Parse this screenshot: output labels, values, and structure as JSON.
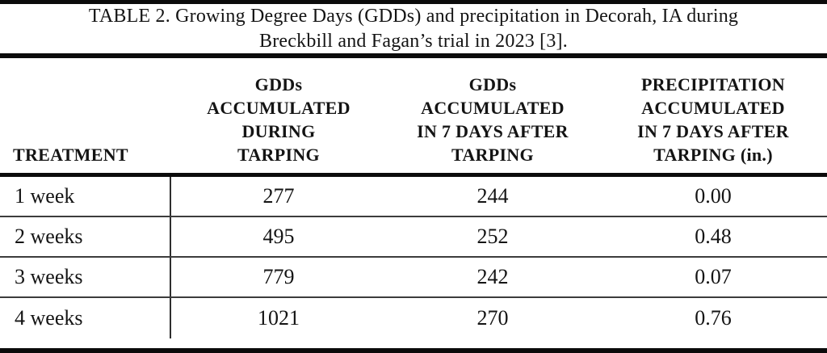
{
  "table": {
    "caption": "TABLE 2. Growing Degree Days (GDDs) and precipitation in Decorah, IA during\nBreckbill and Fagan’s trial in 2023 [3].",
    "headers": [
      "TREATMENT",
      "GDDs\nACCUMULATED\nDURING\nTARPING",
      "GDDs\nACCUMULATED\nIN 7 DAYS AFTER\nTARPING",
      "PRECIPITATION\nACCUMULATED\nIN 7 DAYS AFTER\nTARPING (in.)"
    ],
    "rows": [
      [
        "1 week",
        "277",
        "244",
        "0.00"
      ],
      [
        "2 weeks",
        "495",
        "252",
        "0.48"
      ],
      [
        "3 weeks",
        "779",
        "242",
        "0.07"
      ],
      [
        "4 weeks",
        "1021",
        "270",
        "0.76"
      ]
    ]
  },
  "colors": {
    "background": "#ffffff",
    "text": "#141414",
    "thick_rule": "#0b0b0b",
    "thin_rule": "#3c3c3c"
  },
  "chart_data": {
    "type": "table",
    "title": "TABLE 2. Growing Degree Days (GDDs) and precipitation in Decorah, IA during Breckbill and Fagan’s trial in 2023 [3].",
    "columns": [
      "TREATMENT",
      "GDDs ACCUMULATED DURING TARPING",
      "GDDs ACCUMULATED IN 7 DAYS AFTER TARPING",
      "PRECIPITATION ACCUMULATED IN 7 DAYS AFTER TARPING (in.)"
    ],
    "rows": [
      {
        "treatment": "1 week",
        "gdds_during_tarping": 277,
        "gdds_7_days_after": 244,
        "precip_7_days_after_in": 0.0
      },
      {
        "treatment": "2 weeks",
        "gdds_during_tarping": 495,
        "gdds_7_days_after": 252,
        "precip_7_days_after_in": 0.48
      },
      {
        "treatment": "3 weeks",
        "gdds_during_tarping": 779,
        "gdds_7_days_after": 242,
        "precip_7_days_after_in": 0.07
      },
      {
        "treatment": "4 weeks",
        "gdds_during_tarping": 1021,
        "gdds_7_days_after": 270,
        "precip_7_days_after_in": 0.76
      }
    ]
  }
}
